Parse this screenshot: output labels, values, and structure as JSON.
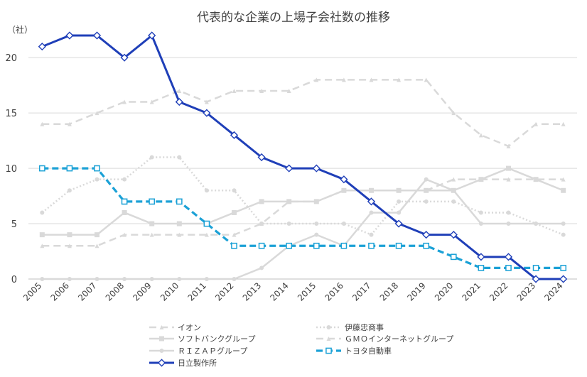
{
  "chart_data": {
    "type": "line",
    "title": "代表的な企業の上場子会社数の推移",
    "ylabel": "（社）",
    "xlabel": "",
    "ylim": [
      0,
      22
    ],
    "yticks": [
      0,
      5,
      10,
      15,
      20
    ],
    "grid": true,
    "legend_position": "bottom",
    "categories": [
      "2005",
      "2006",
      "2007",
      "2008",
      "2009",
      "2010",
      "2011",
      "2012",
      "2013",
      "2014",
      "2015",
      "2016",
      "2017",
      "2018",
      "2019",
      "2020",
      "2021",
      "2022",
      "2023",
      "2024"
    ],
    "series": [
      {
        "name": "イオン",
        "style": "dash",
        "marker": "triangle",
        "color": "#d9d9d9",
        "values": [
          14,
          14,
          15,
          16,
          16,
          17,
          16,
          17,
          17,
          17,
          18,
          18,
          18,
          18,
          18,
          15,
          13,
          12,
          14,
          14
        ]
      },
      {
        "name": "伊藤忠商事",
        "style": "dot",
        "marker": "circle",
        "color": "#d9d9d9",
        "values": [
          6,
          8,
          9,
          9,
          11,
          11,
          8,
          8,
          5,
          5,
          5,
          5,
          4,
          7,
          7,
          7,
          6,
          6,
          5,
          4
        ]
      },
      {
        "name": "ソフトバンクグループ",
        "style": "solid",
        "marker": "square",
        "color": "#d9d9d9",
        "values": [
          4,
          4,
          4,
          6,
          5,
          5,
          5,
          6,
          7,
          7,
          7,
          8,
          8,
          8,
          8,
          8,
          9,
          10,
          9,
          8
        ]
      },
      {
        "name": "ＧＭＯインターネットグループ",
        "style": "dash",
        "marker": "triangle",
        "color": "#d9d9d9",
        "values": [
          3,
          3,
          3,
          4,
          4,
          4,
          4,
          4,
          5,
          7,
          7,
          8,
          8,
          8,
          8,
          9,
          9,
          9,
          9,
          9
        ]
      },
      {
        "name": "ＲＩＺＡＰグループ",
        "style": "solid",
        "marker": "circle",
        "color": "#d9d9d9",
        "values": [
          0,
          0,
          0,
          0,
          0,
          0,
          0,
          0,
          1,
          3,
          4,
          3,
          6,
          6,
          9,
          8,
          5,
          5,
          5,
          5
        ]
      },
      {
        "name": "トヨタ自動車",
        "style": "dash",
        "marker": "square",
        "color": "#1ba1d6",
        "values": [
          10,
          10,
          10,
          7,
          7,
          7,
          5,
          3,
          3,
          3,
          3,
          3,
          3,
          3,
          3,
          2,
          1,
          1,
          1,
          1
        ]
      },
      {
        "name": "日立製作所",
        "style": "solid",
        "marker": "diamond",
        "color": "#1f3fb8",
        "values": [
          21,
          22,
          22,
          20,
          22,
          16,
          15,
          13,
          11,
          10,
          10,
          9,
          7,
          5,
          4,
          4,
          2,
          2,
          0,
          0
        ]
      }
    ]
  }
}
